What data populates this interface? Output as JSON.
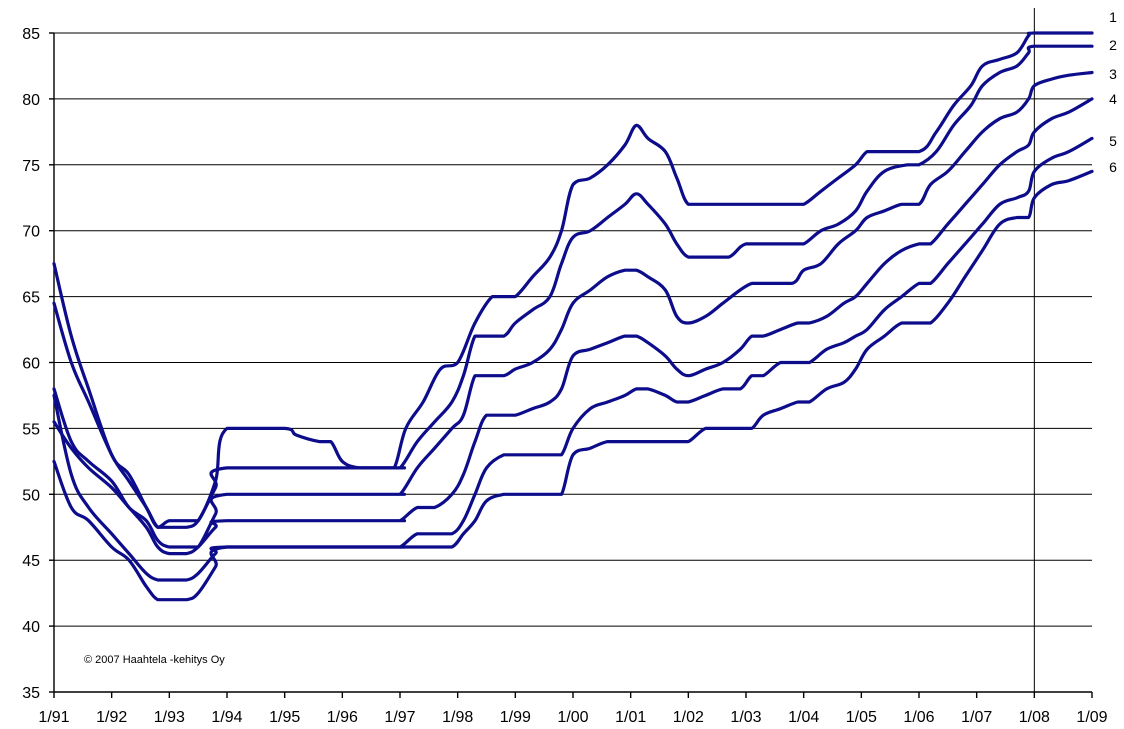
{
  "chart_data": {
    "type": "line",
    "title": "",
    "xlabel": "",
    "ylabel": "",
    "ylim": [
      35,
      85
    ],
    "yticks": [
      35,
      40,
      45,
      50,
      55,
      60,
      65,
      70,
      75,
      80,
      85
    ],
    "xlim": [
      1991,
      2009
    ],
    "x_tick_labels": [
      "1/91",
      "1/92",
      "1/93",
      "1/94",
      "1/95",
      "1/96",
      "1/97",
      "1/98",
      "1/99",
      "1/00",
      "1/01",
      "1/02",
      "1/03",
      "1/04",
      "1/05",
      "1/06",
      "1/07",
      "1/08",
      "1/09"
    ],
    "grid": "horizontal",
    "vertical_marker_at": 2008,
    "line_color": "#0d0d8c",
    "copyright": "© 2007 Haahtela -kehitys Oy",
    "series": [
      {
        "name": "1",
        "x": [
          1991.0,
          1991.3,
          1991.6,
          1992.0,
          1992.3,
          1992.6,
          1992.8,
          1993.0,
          1993.3,
          1993.5,
          1993.8,
          1994.0,
          1995.0,
          1995.2,
          1995.6,
          1995.8,
          1996.0,
          1996.3,
          1996.7,
          1996.9,
          1997.1,
          1997.4,
          1997.7,
          1998.0,
          1998.3,
          1998.6,
          1998.8,
          1999.0,
          1999.3,
          1999.6,
          1999.8,
          2000.0,
          2000.3,
          2000.6,
          2000.9,
          2001.1,
          2001.3,
          2001.6,
          2001.8,
          2002.0,
          2002.3,
          2003.0,
          2003.5,
          2003.8,
          2004.0,
          2004.3,
          2004.6,
          2004.9,
          2005.1,
          2005.3,
          2006.0,
          2006.3,
          2006.6,
          2006.9,
          2007.1,
          2007.4,
          2007.7,
          2007.9,
          2008.0,
          2009.0
        ],
        "values": [
          67.5,
          62,
          58,
          53,
          51.5,
          49,
          47.5,
          48,
          48,
          48,
          51,
          55,
          55,
          54.5,
          54,
          54,
          52.5,
          52,
          52,
          52,
          55,
          57,
          59.5,
          60,
          63,
          65,
          65,
          65,
          66.5,
          68,
          70,
          73.5,
          74,
          75,
          76.5,
          78,
          77,
          76,
          74,
          72,
          72,
          72,
          72,
          72,
          72,
          73,
          74,
          75,
          76,
          76,
          76,
          77.5,
          79.5,
          81,
          82.5,
          83,
          83.5,
          84.8,
          85,
          85
        ]
      },
      {
        "name": "2",
        "x": [
          1991.0,
          1991.3,
          1991.6,
          1992.0,
          1992.3,
          1992.6,
          1992.8,
          1993.0,
          1993.3,
          1993.5,
          1993.8,
          1994.0,
          1996.8,
          1997.0,
          1997.3,
          1997.6,
          1997.9,
          1998.1,
          1998.3,
          1998.5,
          1998.8,
          1999.0,
          1999.3,
          1999.6,
          1999.8,
          2000.0,
          2000.3,
          2000.6,
          2000.9,
          2001.1,
          2001.3,
          2001.6,
          2001.8,
          2002.0,
          2002.3,
          2002.7,
          2003.0,
          2003.5,
          2003.8,
          2004.0,
          2004.3,
          2004.6,
          2004.9,
          2005.1,
          2005.4,
          2005.8,
          2006.0,
          2006.3,
          2006.6,
          2006.9,
          2007.1,
          2007.4,
          2007.7,
          2007.9,
          2008.0,
          2009.0
        ],
        "values": [
          64.5,
          60,
          57,
          53,
          51,
          49,
          47.5,
          47.5,
          47.5,
          48,
          50.5,
          52,
          52,
          52,
          54,
          55.5,
          57,
          59,
          62,
          62,
          62,
          63,
          64,
          65,
          67.5,
          69.5,
          70,
          71,
          72,
          72.8,
          72,
          70.5,
          69,
          68,
          68,
          68,
          69,
          69,
          69,
          69,
          70,
          70.5,
          71.5,
          73,
          74.5,
          75,
          75,
          76,
          78,
          79.5,
          81,
          82,
          82.5,
          83.5,
          84,
          84
        ]
      },
      {
        "name": "3",
        "x": [
          1991.0,
          1991.3,
          1991.6,
          1992.0,
          1992.3,
          1992.6,
          1992.8,
          1993.0,
          1993.3,
          1993.5,
          1993.8,
          1994.0,
          1996.8,
          1997.0,
          1997.3,
          1997.6,
          1997.9,
          1998.1,
          1998.3,
          1998.5,
          1998.8,
          1999.0,
          1999.3,
          1999.6,
          1999.8,
          2000.0,
          2000.3,
          2000.6,
          2000.9,
          2001.1,
          2001.3,
          2001.6,
          2001.8,
          2002.0,
          2002.3,
          2002.6,
          2002.9,
          2003.1,
          2003.3,
          2003.8,
          2004.0,
          2004.3,
          2004.6,
          2004.9,
          2005.1,
          2005.4,
          2005.7,
          2006.0,
          2006.2,
          2006.5,
          2006.8,
          2007.1,
          2007.4,
          2007.7,
          2007.9,
          2008.0,
          2008.3,
          2008.6,
          2009.0
        ],
        "values": [
          58,
          54,
          52.5,
          51,
          49,
          48,
          46.5,
          46,
          46,
          46,
          48.5,
          50,
          50,
          50,
          52,
          53.5,
          55,
          56,
          59,
          59,
          59,
          59.5,
          60,
          61,
          62.5,
          64.5,
          65.5,
          66.5,
          67,
          67,
          66.5,
          65.5,
          63.5,
          63,
          63.5,
          64.5,
          65.5,
          66,
          66,
          66,
          67,
          67.5,
          69,
          70,
          71,
          71.5,
          72,
          72,
          73.5,
          74.5,
          76,
          77.5,
          78.5,
          79,
          80,
          81,
          81.5,
          81.8,
          82
        ]
      },
      {
        "name": "4",
        "x": [
          1991.0,
          1991.3,
          1991.6,
          1992.0,
          1992.3,
          1992.6,
          1992.8,
          1993.0,
          1993.3,
          1993.5,
          1993.8,
          1994.0,
          1996.8,
          1997.0,
          1997.3,
          1997.6,
          1997.9,
          1998.1,
          1998.3,
          1998.5,
          1998.8,
          1999.0,
          1999.3,
          1999.6,
          1999.8,
          2000.0,
          2000.3,
          2000.6,
          2000.9,
          2001.1,
          2001.3,
          2001.6,
          2001.8,
          2002.0,
          2002.3,
          2002.6,
          2002.9,
          2003.1,
          2003.3,
          2003.6,
          2003.9,
          2004.1,
          2004.4,
          2004.7,
          2004.9,
          2005.1,
          2005.4,
          2005.7,
          2006.0,
          2006.2,
          2006.5,
          2006.8,
          2007.1,
          2007.4,
          2007.7,
          2007.9,
          2008.0,
          2008.3,
          2008.6,
          2009.0
        ],
        "values": [
          55.5,
          53.5,
          52,
          50.5,
          49,
          47.5,
          46,
          45.5,
          45.5,
          46,
          47.5,
          48,
          48,
          48,
          49,
          49,
          50,
          51.5,
          54,
          56,
          56,
          56,
          56.5,
          57,
          58,
          60.5,
          61,
          61.5,
          62,
          62,
          61.5,
          60.5,
          59.5,
          59,
          59.5,
          60,
          61,
          62,
          62,
          62.5,
          63,
          63,
          63.5,
          64.5,
          65,
          66,
          67.5,
          68.5,
          69,
          69,
          70.5,
          72,
          73.5,
          75,
          76,
          76.5,
          77.5,
          78.5,
          79,
          80
        ]
      },
      {
        "name": "5",
        "x": [
          1991.0,
          1991.3,
          1991.6,
          1992.0,
          1992.3,
          1992.6,
          1992.8,
          1993.0,
          1993.3,
          1993.5,
          1993.8,
          1994.0,
          1996.8,
          1997.0,
          1997.3,
          1997.6,
          1997.9,
          1998.1,
          1998.3,
          1998.5,
          1998.8,
          1999.0,
          1999.3,
          1999.6,
          1999.8,
          2000.0,
          2000.3,
          2000.6,
          2000.9,
          2001.1,
          2001.3,
          2001.6,
          2001.8,
          2002.0,
          2002.3,
          2002.6,
          2002.9,
          2003.1,
          2003.3,
          2003.6,
          2003.9,
          2004.1,
          2004.4,
          2004.7,
          2004.9,
          2005.1,
          2005.4,
          2005.7,
          2006.0,
          2006.2,
          2006.5,
          2006.8,
          2007.1,
          2007.4,
          2007.7,
          2007.9,
          2008.0,
          2008.3,
          2008.6,
          2009.0
        ],
        "values": [
          57.5,
          51.5,
          49,
          47,
          45.5,
          44,
          43.5,
          43.5,
          43.5,
          44,
          45.5,
          46,
          46,
          46,
          47,
          47,
          47,
          48,
          50,
          52,
          53,
          53,
          53,
          53,
          53,
          55,
          56.5,
          57,
          57.5,
          58,
          58,
          57.5,
          57,
          57,
          57.5,
          58,
          58,
          59,
          59,
          60,
          60,
          60,
          61,
          61.5,
          62,
          62.5,
          64,
          65,
          66,
          66,
          67.5,
          69,
          70.5,
          72,
          72.5,
          73,
          74.5,
          75.5,
          76,
          77
        ]
      },
      {
        "name": "6",
        "x": [
          1991.0,
          1991.3,
          1991.6,
          1992.0,
          1992.3,
          1992.6,
          1992.8,
          1993.0,
          1993.3,
          1993.5,
          1993.8,
          1994.0,
          1996.8,
          1997.0,
          1997.3,
          1997.6,
          1997.9,
          1998.1,
          1998.3,
          1998.5,
          1998.8,
          1999.0,
          1999.3,
          1999.6,
          1999.8,
          2000.0,
          2000.3,
          2000.6,
          2000.9,
          2001.1,
          2001.3,
          2001.6,
          2001.8,
          2002.0,
          2002.3,
          2002.6,
          2002.9,
          2003.1,
          2003.3,
          2003.6,
          2003.9,
          2004.1,
          2004.4,
          2004.7,
          2004.9,
          2005.1,
          2005.4,
          2005.7,
          2006.0,
          2006.2,
          2006.5,
          2006.8,
          2007.1,
          2007.4,
          2007.7,
          2007.9,
          2008.0,
          2008.3,
          2008.6,
          2009.0
        ],
        "values": [
          52.5,
          49,
          48,
          46,
          45,
          43,
          42,
          42,
          42,
          42.5,
          44.5,
          46,
          46,
          46,
          46,
          46,
          46,
          47,
          48,
          49.5,
          50,
          50,
          50,
          50,
          50,
          53,
          53.5,
          54,
          54,
          54,
          54,
          54,
          54,
          54,
          55,
          55,
          55,
          55,
          56,
          56.5,
          57,
          57,
          58,
          58.5,
          59.5,
          61,
          62,
          63,
          63,
          63,
          64.5,
          66.5,
          68.5,
          70.5,
          71,
          71,
          72.5,
          73.5,
          73.8,
          74.5
        ]
      }
    ]
  }
}
